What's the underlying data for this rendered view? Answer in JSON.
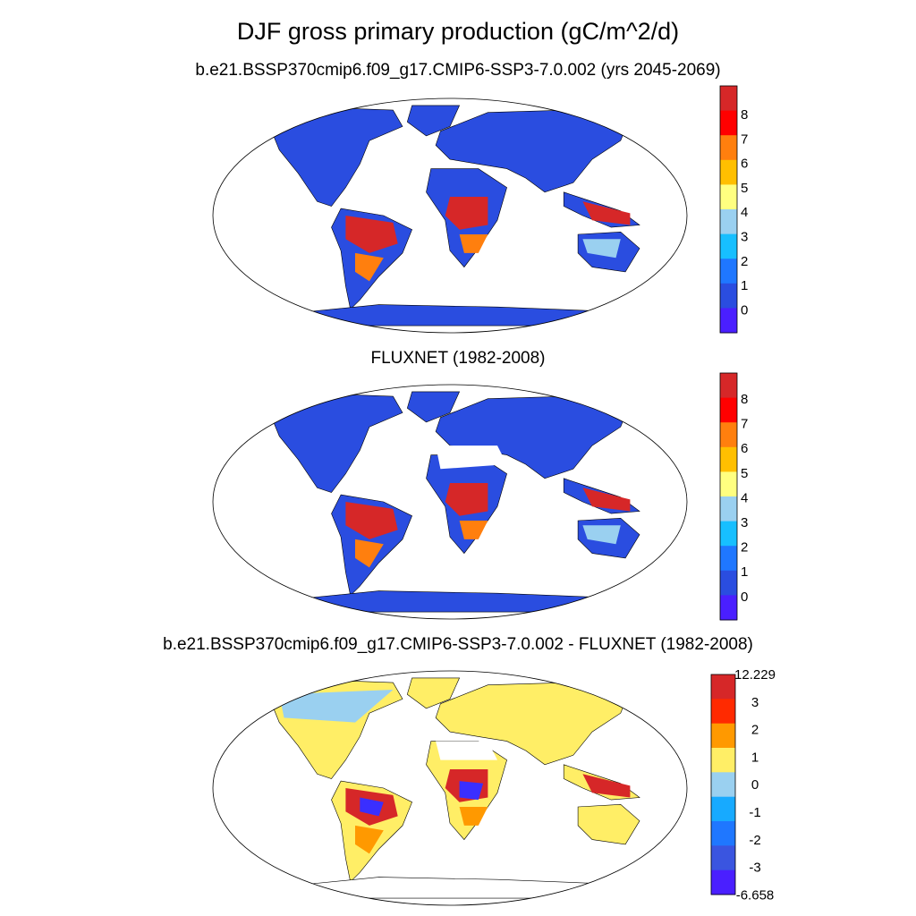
{
  "figure": {
    "title": "DJF gross primary production (gC/m^2/d)"
  },
  "panels": [
    {
      "title": "b.e21.BSSP370cmip6.f09_g17.CMIP6-SSP3-7.0.002 (yrs 2045-2069)",
      "colorbar": {
        "labels": [
          "8",
          "7",
          "6",
          "5",
          "4",
          "3",
          "2",
          "1",
          "0"
        ],
        "colors": [
          "#d62728",
          "#ff0000",
          "#ff7f0e",
          "#ffbf00",
          "#ffff80",
          "#9ad0f0",
          "#17bfff",
          "#1f77ff",
          "#2a4de0",
          "#4a1fff"
        ]
      },
      "land_colors": {
        "default": "#2a4de0",
        "tropics": "#d62728",
        "mid": "#ff7f0e",
        "light": "#9ad0f0"
      }
    },
    {
      "title": "FLUXNET (1982-2008)",
      "colorbar": {
        "labels": [
          "8",
          "7",
          "6",
          "5",
          "4",
          "3",
          "2",
          "1",
          "0"
        ],
        "colors": [
          "#d62728",
          "#ff0000",
          "#ff7f0e",
          "#ffbf00",
          "#ffff80",
          "#9ad0f0",
          "#17bfff",
          "#1f77ff",
          "#2a4de0",
          "#4a1fff"
        ]
      },
      "land_colors": {
        "default": "#2a4de0",
        "tropics": "#d62728",
        "mid": "#ff7f0e",
        "light": "#9ad0f0",
        "missing": "#ffffff"
      }
    },
    {
      "title": "b.e21.BSSP370cmip6.f09_g17.CMIP6-SSP3-7.0.002 - FLUXNET (1982-2008)",
      "colorbar": {
        "labels": [
          "12.229",
          "3",
          "2",
          "1",
          "0",
          "-1",
          "-2",
          "-3",
          "-6.658"
        ],
        "colors": [
          "#d62728",
          "#ff2a00",
          "#ff9900",
          "#ffee66",
          "#9ad0f0",
          "#17aaff",
          "#1f77ff",
          "#3a55e0",
          "#4a1fff"
        ]
      },
      "land_colors": {
        "default": "#ffee66",
        "tropics": "#d62728",
        "mid": "#ff9900",
        "light": "#9ad0f0",
        "neg": "#3a2fff",
        "missing": "#ffffff"
      }
    }
  ]
}
